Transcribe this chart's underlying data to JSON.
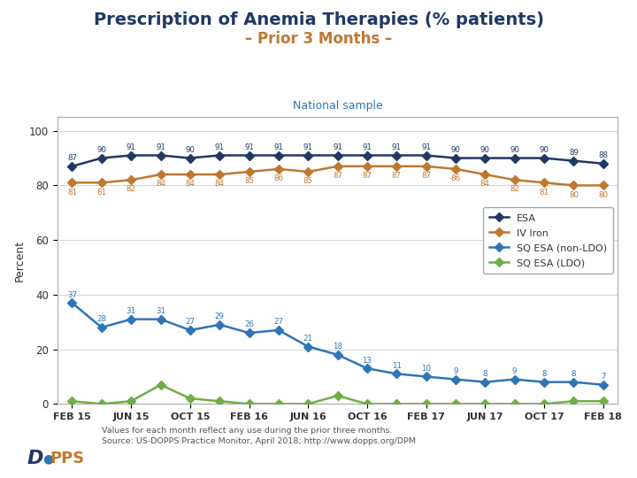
{
  "title_line1": "Prescription of Anemia Therapies (% patients)",
  "title_line2": "– Prior 3 Months –",
  "subtitle": "National sample",
  "xlabel_labels": [
    "FEB 15",
    "JUN 15",
    "OCT 15",
    "FEB 16",
    "JUN 16",
    "OCT 16",
    "FEB 17",
    "JUN 17",
    "OCT 17",
    "FEB 18"
  ],
  "ylabel": "Percent",
  "ylim": [
    0,
    105
  ],
  "yticks": [
    0,
    20,
    40,
    60,
    80,
    100
  ],
  "esa": [
    87,
    90,
    91,
    91,
    90,
    91,
    91,
    91,
    91,
    91,
    91,
    91,
    91,
    90,
    90,
    90,
    90,
    89,
    88
  ],
  "iv_iron": [
    81,
    81,
    82,
    84,
    84,
    84,
    85,
    86,
    85,
    87,
    87,
    87,
    87,
    86,
    84,
    82,
    81,
    80,
    80
  ],
  "sq_esa_nonldo": [
    37,
    28,
    31,
    31,
    27,
    29,
    26,
    27,
    21,
    18,
    13,
    11,
    10,
    9,
    8,
    9,
    8,
    8,
    7
  ],
  "sq_esa_ldo": [
    1,
    0,
    1,
    7,
    2,
    1,
    0,
    0,
    0,
    3,
    0,
    0,
    0,
    0,
    0,
    0,
    0,
    1,
    1
  ],
  "x_positions": [
    0,
    1,
    2,
    3,
    4,
    5,
    6,
    7,
    8,
    9,
    10,
    11,
    12,
    13,
    14,
    15,
    16,
    17,
    18
  ],
  "xtick_positions": [
    0,
    2,
    4,
    6,
    8,
    10,
    12,
    14,
    16,
    18
  ],
  "color_esa": "#1f3864",
  "color_iv_iron": "#c07830",
  "color_sq_nonldo": "#2e75b6",
  "color_sq_ldo": "#70ad47",
  "bg_color": "#d9d9d9",
  "plot_bg": "#ffffff",
  "border_color": "#aaaaaa",
  "footer1": "Values for each month reflect any use during the prior three months.",
  "footer2": "Source: US-DOPPS Practice Monitor, April 2018; http://www.dopps.org/DPM",
  "legend_entries": [
    "ESA",
    "IV Iron",
    "SQ ESA (non-LDO)",
    "SQ ESA (LDO)"
  ]
}
